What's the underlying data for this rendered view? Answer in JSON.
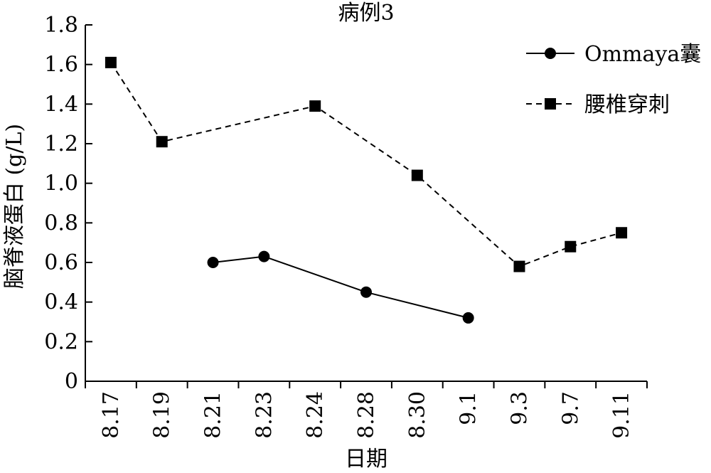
{
  "chart_data": {
    "type": "line",
    "title": "病例3",
    "xlabel": "日期",
    "ylabel": "脑脊液蛋白 (g/L)",
    "categories": [
      "8.17",
      "8.19",
      "8.21",
      "8.23",
      "8.24",
      "8.28",
      "8.30",
      "9.1",
      "9.3",
      "9.7",
      "9.11"
    ],
    "ylim": [
      0,
      1.8
    ],
    "yticks": [
      "0",
      "0.2",
      "0.4",
      "0.6",
      "0.8",
      "1.0",
      "1.2",
      "1.4",
      "1.6",
      "1.8"
    ],
    "grid": false,
    "legend_position": "top-right",
    "series": [
      {
        "name": "Ommaya囊",
        "style": "solid",
        "marker": "circle",
        "color": "#000000",
        "values": [
          null,
          null,
          0.6,
          0.63,
          null,
          0.45,
          null,
          0.32,
          null,
          null,
          null
        ]
      },
      {
        "name": "腰椎穿刺",
        "style": "dashed",
        "marker": "square",
        "color": "#000000",
        "values": [
          1.61,
          1.21,
          null,
          null,
          1.39,
          null,
          1.04,
          null,
          0.58,
          0.68,
          0.75
        ]
      }
    ]
  }
}
